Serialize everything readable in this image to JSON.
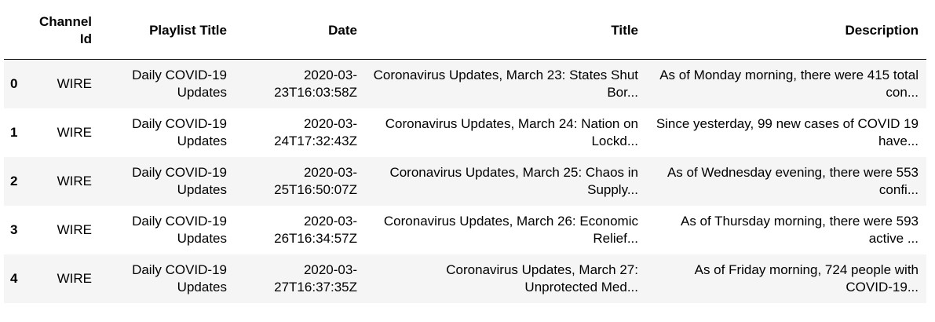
{
  "table": {
    "columns": [
      "Channel Id",
      "Playlist Title",
      "Date",
      "Title",
      "Description"
    ],
    "rows": [
      {
        "index": "0",
        "channel_id": "WIRE",
        "playlist_title": "Daily COVID-19 Updates",
        "date": "2020-03-23T16:03:58Z",
        "title": "Coronavirus Updates, March 23: States Shut Bor...",
        "description": "As of Monday morning, there were 415 total con..."
      },
      {
        "index": "1",
        "channel_id": "WIRE",
        "playlist_title": "Daily COVID-19 Updates",
        "date": "2020-03-24T17:32:43Z",
        "title": "Coronavirus Updates, March 24: Nation on Lockd...",
        "description": "Since yesterday, 99 new cases of COVID 19 have..."
      },
      {
        "index": "2",
        "channel_id": "WIRE",
        "playlist_title": "Daily COVID-19 Updates",
        "date": "2020-03-25T16:50:07Z",
        "title": "Coronavirus Updates, March 25: Chaos in Supply...",
        "description": "As of  Wednesday evening, there were 553 confi..."
      },
      {
        "index": "3",
        "channel_id": "WIRE",
        "playlist_title": "Daily COVID-19 Updates",
        "date": "2020-03-26T16:34:57Z",
        "title": "Coronavirus Updates, March 26: Economic Relief...",
        "description": "As of Thursday morning, there were 593 active ..."
      },
      {
        "index": "4",
        "channel_id": "WIRE",
        "playlist_title": "Daily COVID-19 Updates",
        "date": "2020-03-27T16:37:35Z",
        "title": "Coronavirus Updates, March 27: Unprotected Med...",
        "description": "As of Friday morning, 724 people with COVID-19..."
      }
    ]
  }
}
